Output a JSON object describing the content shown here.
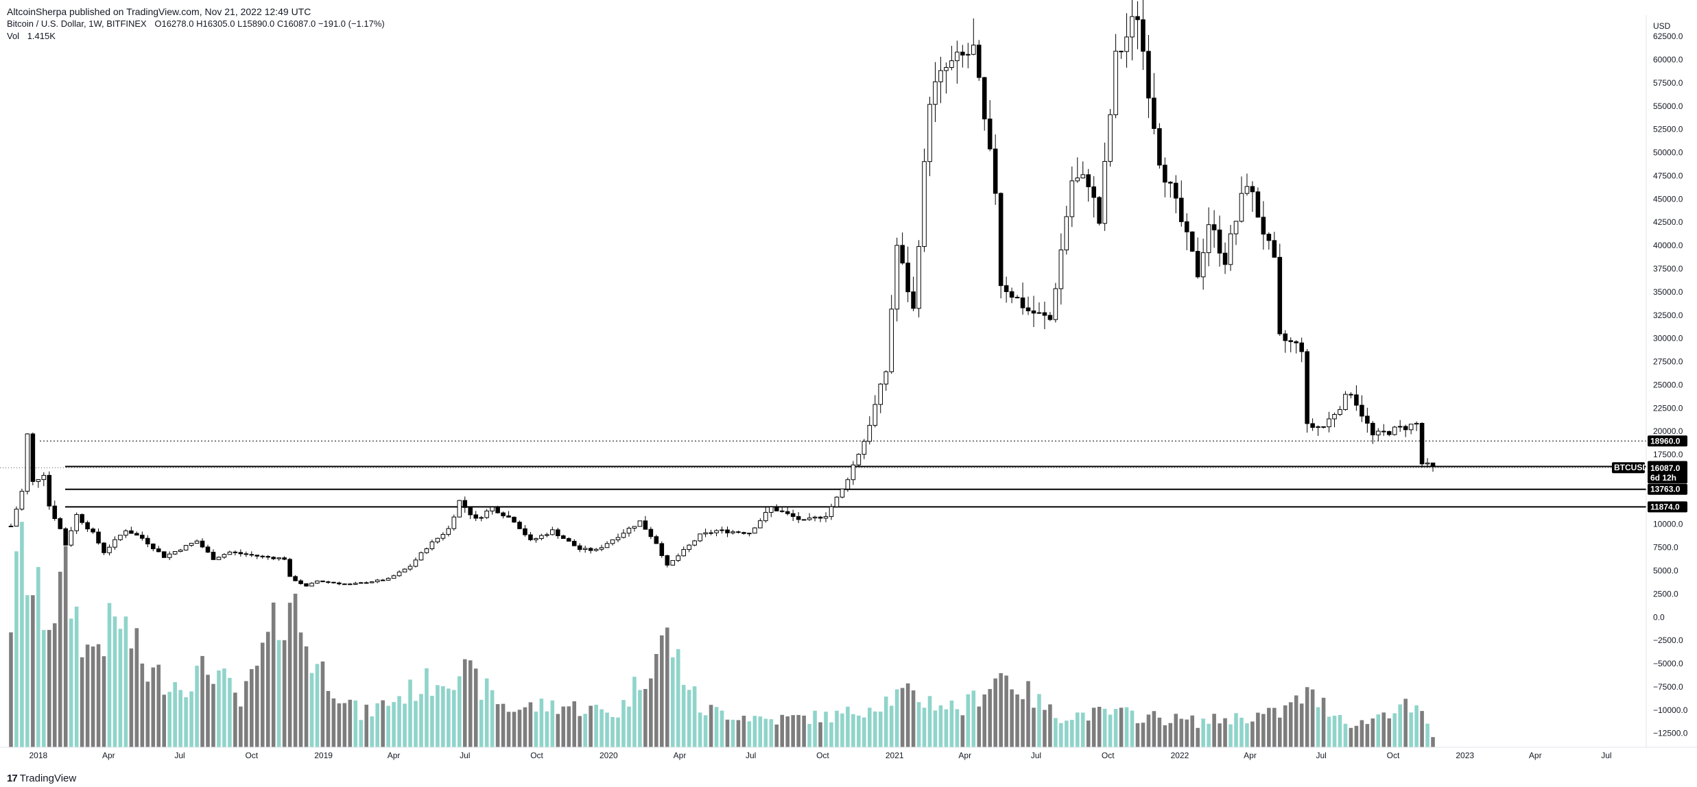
{
  "header": {
    "published": "AltcoinSherpa published on TradingView.com, Nov 21, 2022 12:49 UTC",
    "symbol_line": "Bitcoin / U.S. Dollar, 1W, BITFINEX",
    "ohlc": "O16278.0  H16305.0  L15890.0  C16087.0  −191.0 (−1.17%)",
    "volume_label": "Vol",
    "volume_value": "1.415K"
  },
  "footer": {
    "logo": "17",
    "brand": "TradingView"
  },
  "colors": {
    "up_candle": "#ffffff",
    "down_candle": "#000000",
    "wick": "#000000",
    "vol_up": "#8fd4ca",
    "vol_down": "#7d7d7d",
    "level_line": "#000000"
  },
  "chart_data": {
    "type": "candlestick",
    "timeframe": "1W",
    "y_axis": {
      "unit": "USD",
      "ticks": [
        62500,
        60000,
        57500,
        55000,
        52500,
        50000,
        47500,
        45000,
        42500,
        40000,
        37500,
        35000,
        32500,
        30000,
        27500,
        25000,
        22500,
        20000,
        17500,
        15000,
        12500,
        10000,
        7500,
        5000,
        2500,
        0,
        -2500,
        -5000,
        -7500,
        -10000,
        -12500
      ],
      "tick_labels": [
        "62500.0",
        "60000.0",
        "57500.0",
        "55000.0",
        "52500.0",
        "50000.0",
        "47500.0",
        "45000.0",
        "42500.0",
        "40000.0",
        "37500.0",
        "35000.0",
        "32500.0",
        "30000.0",
        "27500.0",
        "25000.0",
        "22500.0",
        "20000.0",
        "17500.0",
        "15000.0",
        "12500.0",
        "10000.0",
        "7500.0",
        "5000.0",
        "2500.0",
        "0.0",
        "−2500.0",
        "−5000.0",
        "−7500.0",
        "−10000.0",
        "−12500.0"
      ],
      "range": [
        -14000,
        64800
      ]
    },
    "x_axis": {
      "range": [
        "2017-11-20",
        "2023-08-21"
      ],
      "ticks": [
        {
          "date": "2018-01-01",
          "label": "2018"
        },
        {
          "date": "2018-04-01",
          "label": "Apr"
        },
        {
          "date": "2018-07-01",
          "label": "Jul"
        },
        {
          "date": "2018-10-01",
          "label": "Oct"
        },
        {
          "date": "2019-01-01",
          "label": "2019"
        },
        {
          "date": "2019-04-01",
          "label": "Apr"
        },
        {
          "date": "2019-07-01",
          "label": "Jul"
        },
        {
          "date": "2019-10-01",
          "label": "Oct"
        },
        {
          "date": "2020-01-01",
          "label": "2020"
        },
        {
          "date": "2020-04-01",
          "label": "Apr"
        },
        {
          "date": "2020-07-01",
          "label": "Jul"
        },
        {
          "date": "2020-10-01",
          "label": "Oct"
        },
        {
          "date": "2021-01-01",
          "label": "2021"
        },
        {
          "date": "2021-04-01",
          "label": "Apr"
        },
        {
          "date": "2021-07-01",
          "label": "Jul"
        },
        {
          "date": "2021-10-01",
          "label": "Oct"
        },
        {
          "date": "2022-01-01",
          "label": "2022"
        },
        {
          "date": "2022-04-01",
          "label": "Apr"
        },
        {
          "date": "2022-07-01",
          "label": "Jul"
        },
        {
          "date": "2022-10-01",
          "label": "Oct"
        },
        {
          "date": "2023-01-01",
          "label": "2023"
        },
        {
          "date": "2023-04-01",
          "label": "Apr"
        },
        {
          "date": "2023-07-01",
          "label": "Jul"
        }
      ]
    },
    "price_anchors": [
      [
        "2017-11-27",
        9800
      ],
      [
        "2017-12-11",
        13500
      ],
      [
        "2017-12-18",
        19600
      ],
      [
        "2017-12-25",
        14500
      ],
      [
        "2018-01-08",
        15500
      ],
      [
        "2018-01-15",
        12000
      ],
      [
        "2018-01-29",
        9500
      ],
      [
        "2018-02-05",
        7800
      ],
      [
        "2018-02-19",
        11000
      ],
      [
        "2018-03-12",
        9000
      ],
      [
        "2018-03-26",
        7000
      ],
      [
        "2018-04-23",
        9400
      ],
      [
        "2018-05-14",
        8500
      ],
      [
        "2018-06-11",
        6500
      ],
      [
        "2018-07-23",
        8200
      ],
      [
        "2018-08-13",
        6300
      ],
      [
        "2018-09-03",
        7000
      ],
      [
        "2018-10-15",
        6500
      ],
      [
        "2018-11-12",
        6300
      ],
      [
        "2018-11-19",
        4300
      ],
      [
        "2018-12-10",
        3300
      ],
      [
        "2018-12-24",
        3900
      ],
      [
        "2019-02-04",
        3500
      ],
      [
        "2019-03-25",
        4100
      ],
      [
        "2019-04-22",
        5500
      ],
      [
        "2019-05-13",
        7500
      ],
      [
        "2019-06-10",
        9500
      ],
      [
        "2019-06-24",
        12500
      ],
      [
        "2019-07-15",
        10500
      ],
      [
        "2019-08-05",
        11800
      ],
      [
        "2019-09-02",
        10400
      ],
      [
        "2019-09-23",
        8200
      ],
      [
        "2019-10-21",
        9300
      ],
      [
        "2019-11-25",
        7300
      ],
      [
        "2019-12-16",
        7200
      ],
      [
        "2020-02-10",
        10300
      ],
      [
        "2020-03-02",
        8000
      ],
      [
        "2020-03-16",
        5500
      ],
      [
        "2020-04-27",
        8800
      ],
      [
        "2020-05-18",
        9300
      ],
      [
        "2020-06-29",
        9100
      ],
      [
        "2020-07-27",
        11800
      ],
      [
        "2020-09-07",
        10300
      ],
      [
        "2020-10-05",
        11000
      ],
      [
        "2020-10-26",
        13700
      ],
      [
        "2020-11-23",
        19000
      ],
      [
        "2020-12-21",
        26500
      ],
      [
        "2021-01-04",
        40000
      ],
      [
        "2021-01-25",
        33000
      ],
      [
        "2021-02-15",
        56000
      ],
      [
        "2021-03-08",
        59000
      ],
      [
        "2021-04-12",
        61000
      ],
      [
        "2021-04-26",
        53000
      ],
      [
        "2021-05-10",
        46000
      ],
      [
        "2021-05-17",
        36000
      ],
      [
        "2021-06-21",
        33000
      ],
      [
        "2021-07-19",
        32000
      ],
      [
        "2021-08-16",
        47000
      ],
      [
        "2021-09-06",
        47000
      ],
      [
        "2021-09-20",
        42500
      ],
      [
        "2021-10-11",
        60000
      ],
      [
        "2021-11-08",
        65000
      ],
      [
        "2021-11-22",
        57000
      ],
      [
        "2021-12-06",
        49500
      ],
      [
        "2022-01-03",
        42500
      ],
      [
        "2022-01-24",
        37000
      ],
      [
        "2022-02-07",
        42500
      ],
      [
        "2022-02-28",
        38500
      ],
      [
        "2022-03-28",
        47000
      ],
      [
        "2022-05-02",
        38000
      ],
      [
        "2022-05-09",
        30000
      ],
      [
        "2022-06-06",
        29000
      ],
      [
        "2022-06-13",
        20500
      ],
      [
        "2022-07-04",
        20500
      ],
      [
        "2022-08-08",
        24300
      ],
      [
        "2022-09-05",
        19500
      ],
      [
        "2022-10-31",
        20800
      ],
      [
        "2022-11-07",
        16500
      ],
      [
        "2022-11-21",
        16087
      ]
    ],
    "volume_anchors": [
      [
        "2017-11-27",
        0.62
      ],
      [
        "2017-12-11",
        0.93
      ],
      [
        "2017-12-25",
        0.72
      ],
      [
        "2018-01-15",
        0.62
      ],
      [
        "2018-02-05",
        0.78
      ],
      [
        "2018-03-05",
        0.45
      ],
      [
        "2018-04-16",
        0.6
      ],
      [
        "2018-05-21",
        0.35
      ],
      [
        "2018-07-02",
        0.3
      ],
      [
        "2018-08-13",
        0.38
      ],
      [
        "2018-09-17",
        0.2
      ],
      [
        "2018-11-19",
        0.72
      ],
      [
        "2018-12-17",
        0.42
      ],
      [
        "2019-02-18",
        0.15
      ],
      [
        "2019-05-13",
        0.3
      ],
      [
        "2019-06-24",
        0.37
      ],
      [
        "2019-08-26",
        0.18
      ],
      [
        "2019-10-28",
        0.2
      ],
      [
        "2020-01-13",
        0.16
      ],
      [
        "2020-03-16",
        0.52
      ],
      [
        "2020-04-27",
        0.18
      ],
      [
        "2020-07-27",
        0.13
      ],
      [
        "2020-10-26",
        0.15
      ],
      [
        "2021-01-11",
        0.25
      ],
      [
        "2021-03-29",
        0.18
      ],
      [
        "2021-05-17",
        0.35
      ],
      [
        "2021-07-26",
        0.15
      ],
      [
        "2021-10-11",
        0.16
      ],
      [
        "2022-01-24",
        0.12
      ],
      [
        "2022-05-09",
        0.16
      ],
      [
        "2022-06-13",
        0.25
      ],
      [
        "2022-08-15",
        0.1
      ],
      [
        "2022-10-10",
        0.2
      ],
      [
        "2022-11-07",
        0.15
      ],
      [
        "2022-11-21",
        0.05
      ]
    ],
    "levels": [
      {
        "value": 18960.0,
        "label": "18960.0",
        "style": "dotted"
      },
      {
        "value": 16215.4,
        "label": "16215.4",
        "style": "solid"
      },
      {
        "value": 13763.0,
        "label": "13763.0",
        "style": "solid"
      },
      {
        "value": 11874.0,
        "label": "11874.0",
        "style": "solid"
      }
    ],
    "last_price": {
      "value": 16087.0,
      "label": "16087.0",
      "symbol": "BTCUSD",
      "countdown": "6d 12h"
    }
  }
}
